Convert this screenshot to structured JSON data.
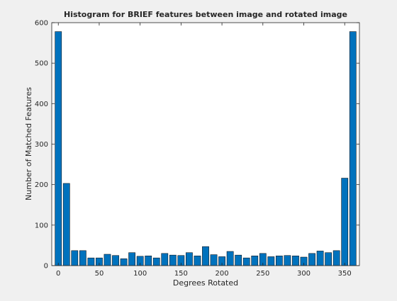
{
  "chart_data": {
    "type": "bar",
    "title": "Histogram for BRIEF features between image and rotated image",
    "xlabel": "Degrees Rotated",
    "ylabel": "Number of Matched Features",
    "xlim": [
      -8,
      368
    ],
    "ylim": [
      0,
      600
    ],
    "x_ticks": [
      0,
      50,
      100,
      150,
      200,
      250,
      300,
      350
    ],
    "y_ticks": [
      0,
      100,
      200,
      300,
      400,
      500,
      600
    ],
    "bar_width_deg": 8,
    "grid": false,
    "bar_color": "#0072bd",
    "x": [
      0,
      10,
      20,
      30,
      40,
      50,
      60,
      70,
      80,
      90,
      100,
      110,
      120,
      130,
      140,
      150,
      160,
      170,
      180,
      190,
      200,
      210,
      220,
      230,
      240,
      250,
      260,
      270,
      280,
      290,
      300,
      310,
      320,
      330,
      340,
      350,
      360
    ],
    "values": [
      578,
      203,
      37,
      37,
      19,
      19,
      28,
      25,
      17,
      32,
      23,
      24,
      19,
      30,
      26,
      25,
      32,
      24,
      47,
      27,
      22,
      35,
      26,
      19,
      24,
      30,
      22,
      24,
      25,
      24,
      21,
      30,
      36,
      32,
      37,
      216,
      578
    ]
  }
}
